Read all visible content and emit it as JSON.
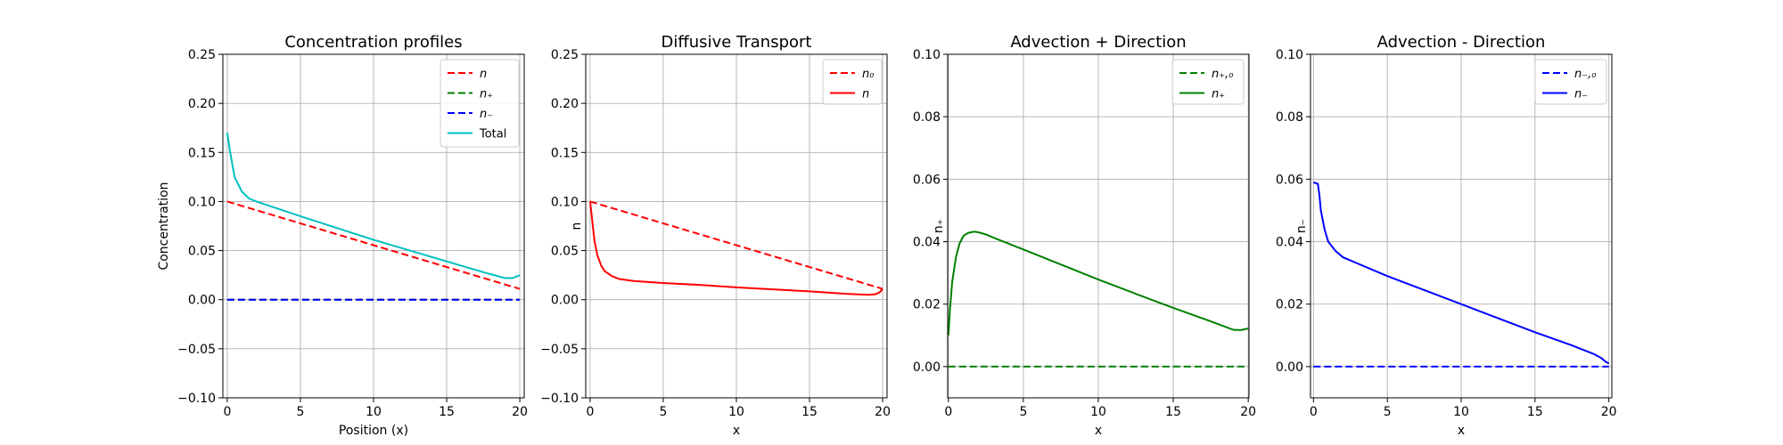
{
  "chart_data": [
    {
      "type": "line",
      "title": "Concentration profiles",
      "xlabel": "Position (x)",
      "ylabel": "Concentration",
      "xlim": [
        -0.3,
        20.3
      ],
      "ylim": [
        -0.1,
        0.25
      ],
      "xticks": [
        "0",
        "5",
        "10",
        "15",
        "20"
      ],
      "xtick_values": [
        0,
        5,
        10,
        15,
        20
      ],
      "yticks": [
        "−0.10",
        "−0.05",
        "0.00",
        "0.05",
        "0.10",
        "0.15",
        "0.20",
        "0.25"
      ],
      "ytick_values": [
        -0.1,
        -0.05,
        0,
        0.05,
        0.1,
        0.15,
        0.2,
        0.25
      ],
      "grid": true,
      "legend": "top-right",
      "series": [
        {
          "name": "n",
          "color": "#ff0000",
          "dash": "dashed",
          "x": [
            0,
            20
          ],
          "y": [
            0.1,
            0.011
          ]
        },
        {
          "name": "n₊",
          "color": "#008000",
          "dash": "dashed",
          "x": [
            0,
            20
          ],
          "y": [
            0.0,
            0.0
          ]
        },
        {
          "name": "n₋",
          "color": "#0000ff",
          "dash": "dashed",
          "x": [
            0,
            20
          ],
          "y": [
            0.0,
            0.0
          ]
        },
        {
          "name": "Total",
          "color": "#00bfbf",
          "dash": "solid",
          "x": [
            0,
            0.2,
            0.5,
            1,
            1.5,
            2,
            3,
            5,
            7.5,
            10,
            12.5,
            15,
            17.5,
            19,
            19.5,
            20
          ],
          "y": [
            0.17,
            0.15,
            0.125,
            0.11,
            0.103,
            0.1,
            0.095,
            0.085,
            0.073,
            0.061,
            0.05,
            0.039,
            0.028,
            0.022,
            0.022,
            0.025
          ]
        }
      ]
    },
    {
      "type": "line",
      "title": "Diffusive Transport",
      "xlabel": "x",
      "ylabel": "n",
      "xlim": [
        -0.3,
        20.3
      ],
      "ylim": [
        -0.1,
        0.25
      ],
      "xticks": [
        "0",
        "5",
        "10",
        "15",
        "20"
      ],
      "xtick_values": [
        0,
        5,
        10,
        15,
        20
      ],
      "yticks": [
        "−0.10",
        "−0.05",
        "0.00",
        "0.05",
        "0.10",
        "0.15",
        "0.20",
        "0.25"
      ],
      "ytick_values": [
        -0.1,
        -0.05,
        0,
        0.05,
        0.1,
        0.15,
        0.2,
        0.25
      ],
      "grid": true,
      "legend": "top-right",
      "series": [
        {
          "name": "n₀",
          "color": "#ff0000",
          "dash": "dashed",
          "x": [
            0,
            20
          ],
          "y": [
            0.1,
            0.011
          ]
        },
        {
          "name": "n",
          "color": "#ff0000",
          "dash": "solid",
          "x": [
            0,
            0.15,
            0.3,
            0.5,
            0.75,
            1,
            1.5,
            2,
            3,
            5,
            7.5,
            10,
            12.5,
            15,
            17.5,
            19,
            19.5,
            19.8,
            20
          ],
          "y": [
            0.1,
            0.08,
            0.06,
            0.045,
            0.035,
            0.029,
            0.024,
            0.021,
            0.019,
            0.017,
            0.015,
            0.0125,
            0.0105,
            0.0085,
            0.006,
            0.005,
            0.0055,
            0.0075,
            0.011
          ]
        }
      ]
    },
    {
      "type": "line",
      "title": "Advection + Direction",
      "xlabel": "x",
      "ylabel": "n₊",
      "xlim": [
        -0.05,
        20.05
      ],
      "ylim": [
        -0.01,
        0.1
      ],
      "xticks": [
        "0",
        "5",
        "10",
        "15",
        "20"
      ],
      "xtick_values": [
        0,
        5,
        10,
        15,
        20
      ],
      "yticks": [
        "0.00",
        "0.02",
        "0.04",
        "0.06",
        "0.08",
        "0.10"
      ],
      "ytick_values": [
        0,
        0.02,
        0.04,
        0.06,
        0.08,
        0.1
      ],
      "grid": true,
      "legend": "top-right",
      "series": [
        {
          "name": "n₊,₀",
          "color": "#008000",
          "dash": "dashed",
          "x": [
            0,
            20
          ],
          "y": [
            0.0,
            0.0
          ]
        },
        {
          "name": "n₊",
          "color": "#008000",
          "dash": "solid",
          "x": [
            0,
            0.1,
            0.25,
            0.5,
            0.75,
            1,
            1.3,
            1.7,
            2,
            2.5,
            3,
            5,
            7.5,
            10,
            12.5,
            15,
            17.5,
            19,
            19.5,
            20
          ],
          "y": [
            0.01,
            0.018,
            0.027,
            0.035,
            0.0395,
            0.0418,
            0.0428,
            0.0432,
            0.043,
            0.0423,
            0.0413,
            0.0375,
            0.0327,
            0.0279,
            0.0233,
            0.0188,
            0.0145,
            0.0118,
            0.0117,
            0.0122
          ]
        }
      ]
    },
    {
      "type": "line",
      "title": "Advection - Direction",
      "xlabel": "x",
      "ylabel": "n₋",
      "xlim": [
        -0.2,
        20.2
      ],
      "ylim": [
        -0.01,
        0.1
      ],
      "xticks": [
        "0",
        "5",
        "10",
        "15",
        "20"
      ],
      "xtick_values": [
        0,
        5,
        10,
        15,
        20
      ],
      "yticks": [
        "0.00",
        "0.02",
        "0.04",
        "0.06",
        "0.08",
        "0.10"
      ],
      "ytick_values": [
        0,
        0.02,
        0.04,
        0.06,
        0.08,
        0.1
      ],
      "grid": true,
      "legend": "top-right",
      "series": [
        {
          "name": "n₋,₀",
          "color": "#0000ff",
          "dash": "dashed",
          "x": [
            0,
            20
          ],
          "y": [
            0.0,
            0.0
          ]
        },
        {
          "name": "n₋",
          "color": "#0000ff",
          "dash": "solid",
          "x": [
            0,
            0.3,
            0.4,
            0.5,
            0.75,
            1,
            1.5,
            2,
            3,
            5,
            7.5,
            10,
            12.5,
            15,
            17.5,
            19,
            19.5,
            19.8,
            20
          ],
          "y": [
            0.059,
            0.0585,
            0.055,
            0.05,
            0.044,
            0.04,
            0.037,
            0.035,
            0.033,
            0.029,
            0.0245,
            0.02,
            0.0155,
            0.011,
            0.0068,
            0.004,
            0.0027,
            0.0015,
            0.001
          ]
        }
      ]
    }
  ]
}
